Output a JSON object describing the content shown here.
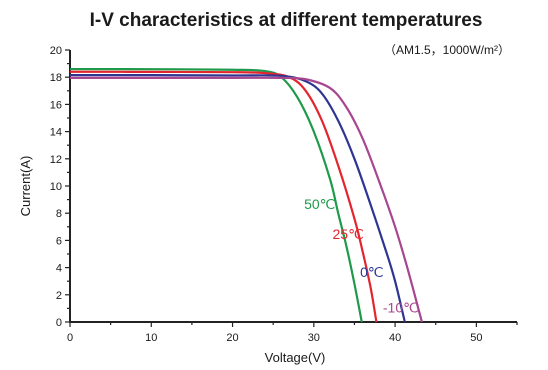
{
  "chart_data": {
    "type": "line",
    "title": "I-V characteristics at different temperatures",
    "subtitle": "（AM1.5，1000W/m²）",
    "xlabel": "Voltage(V)",
    "ylabel": "Current(A)",
    "xlim": [
      0,
      55
    ],
    "ylim": [
      0,
      20
    ],
    "xticks": [
      0,
      10,
      20,
      30,
      40,
      50
    ],
    "yticks": [
      0,
      2,
      4,
      6,
      8,
      10,
      12,
      14,
      16,
      18,
      20
    ],
    "grid": false,
    "series": [
      {
        "name": "50℃",
        "color": "#1e9a4a",
        "points": [
          [
            0,
            18.6
          ],
          [
            10,
            18.59
          ],
          [
            20,
            18.55
          ],
          [
            24,
            18.45
          ],
          [
            26,
            18.0
          ],
          [
            28,
            16.5
          ],
          [
            30,
            14.0
          ],
          [
            32,
            10.5
          ],
          [
            33,
            8.0
          ],
          [
            34,
            5.6
          ],
          [
            35,
            2.8
          ],
          [
            35.9,
            0
          ]
        ]
      },
      {
        "name": "25℃",
        "color": "#e3262e",
        "points": [
          [
            0,
            18.4
          ],
          [
            10,
            18.39
          ],
          [
            20,
            18.37
          ],
          [
            24,
            18.3
          ],
          [
            27,
            18.0
          ],
          [
            29,
            17.0
          ],
          [
            31,
            14.8
          ],
          [
            33,
            11.5
          ],
          [
            35,
            7.6
          ],
          [
            36,
            5.2
          ],
          [
            37,
            2.5
          ],
          [
            37.7,
            0
          ]
        ]
      },
      {
        "name": "0℃",
        "color": "#2e3592",
        "points": [
          [
            0,
            18.15
          ],
          [
            10,
            18.15
          ],
          [
            20,
            18.13
          ],
          [
            26,
            18.1
          ],
          [
            29,
            17.7
          ],
          [
            31,
            16.8
          ],
          [
            33,
            14.8
          ],
          [
            35,
            12.0
          ],
          [
            37,
            8.6
          ],
          [
            39,
            5.0
          ],
          [
            40,
            3.0
          ],
          [
            41.2,
            0
          ]
        ]
      },
      {
        "name": "-10℃",
        "color": "#a8468f",
        "points": [
          [
            0,
            17.95
          ],
          [
            10,
            17.95
          ],
          [
            20,
            17.95
          ],
          [
            26,
            17.95
          ],
          [
            29,
            17.85
          ],
          [
            32,
            17.2
          ],
          [
            34,
            15.8
          ],
          [
            36,
            13.5
          ],
          [
            38,
            10.4
          ],
          [
            40,
            7.0
          ],
          [
            41.5,
            4.0
          ],
          [
            43.3,
            0
          ]
        ]
      }
    ]
  }
}
